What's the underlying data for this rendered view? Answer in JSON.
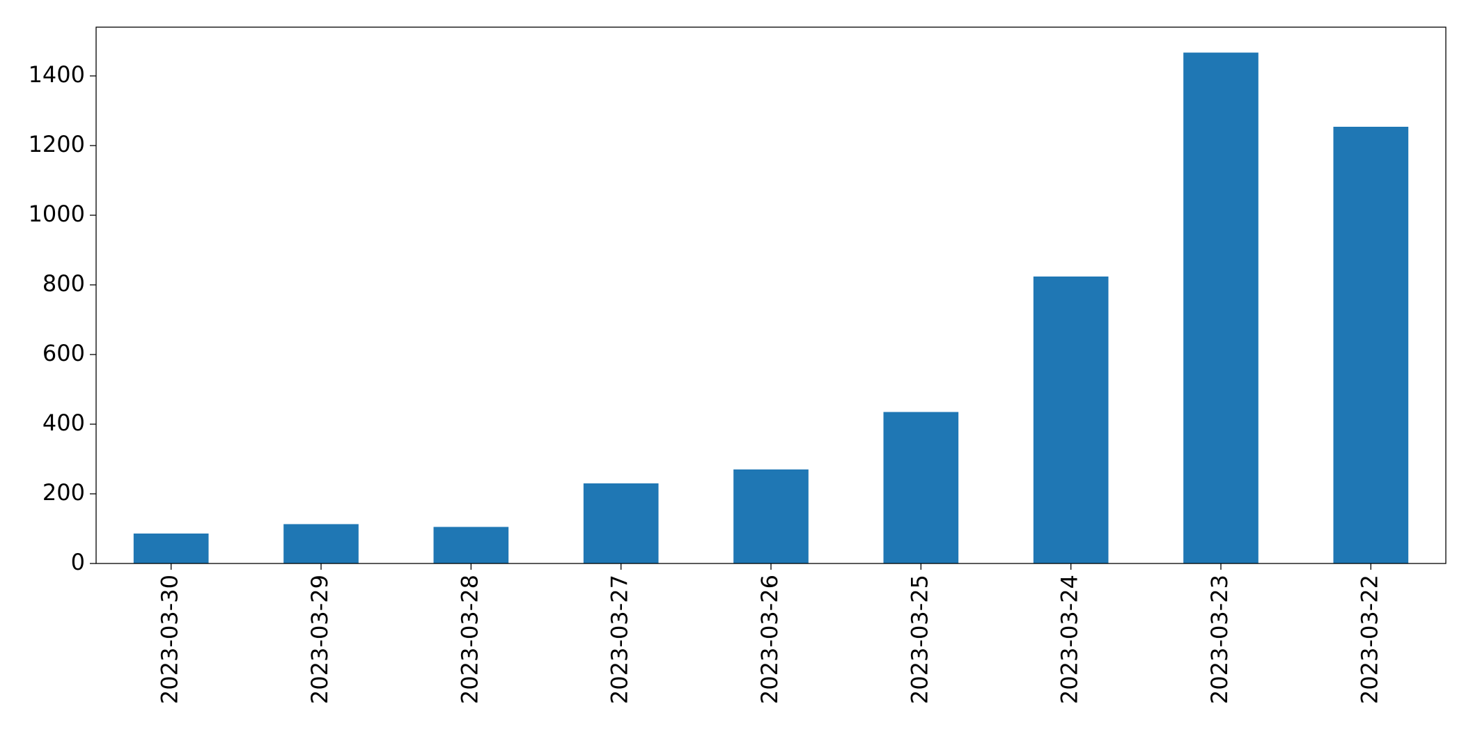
{
  "chart_data": {
    "type": "bar",
    "categories": [
      "2023-03-30",
      "2023-03-29",
      "2023-03-28",
      "2023-03-27",
      "2023-03-26",
      "2023-03-25",
      "2023-03-24",
      "2023-03-23",
      "2023-03-22"
    ],
    "values": [
      86,
      113,
      105,
      230,
      270,
      435,
      824,
      1467,
      1254
    ],
    "color": "#1f77b4",
    "ylim": [
      0,
      1540
    ],
    "yticks": [
      0,
      200,
      400,
      600,
      800,
      1000,
      1200,
      1400
    ],
    "grid": false
  }
}
